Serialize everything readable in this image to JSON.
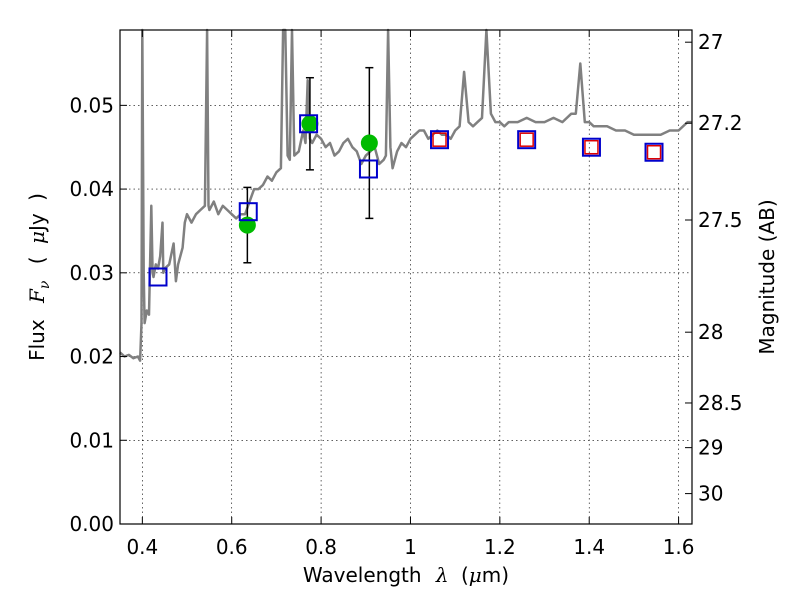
{
  "chart_data": {
    "type": "scatter",
    "xlabel": {
      "prefix": "Wavelength",
      "symbol": "λ",
      "unit_open": "(",
      "unit_mu": "μ",
      "unit_rest": "m)"
    },
    "ylabel": {
      "prefix": "Flux",
      "symbol": "F",
      "subscript": "ν",
      "unit_open": "(",
      "unit_mu": "μ",
      "unit_rest": "Jy",
      "unit_close": ")"
    },
    "ylabel_right": "Magnitude (AB)",
    "xlim": [
      0.35,
      1.63
    ],
    "ylim": [
      0.0,
      0.059
    ],
    "x_ticks": [
      0.4,
      0.6,
      0.8,
      1.0,
      1.2,
      1.4,
      1.6
    ],
    "x_tick_labels": [
      "0.4",
      "0.6",
      "0.8",
      "1",
      "1.2",
      "1.4",
      "1.6"
    ],
    "y_ticks": [
      0.0,
      0.01,
      0.02,
      0.03,
      0.04,
      0.05
    ],
    "y_tick_labels": [
      "0.00",
      "0.01",
      "0.02",
      "0.03",
      "0.04",
      "0.05"
    ],
    "right_ticks": [
      {
        "mag": 27,
        "label": "27"
      },
      {
        "mag": 27.2,
        "label": "27.2"
      },
      {
        "mag": 27.5,
        "label": "27.5"
      },
      {
        "mag": 28,
        "label": "28"
      },
      {
        "mag": 28.5,
        "label": "28.5"
      },
      {
        "mag": 29,
        "label": "29"
      },
      {
        "mag": 30,
        "label": "30"
      }
    ],
    "grid": true,
    "colors": {
      "model_sed": "#808080",
      "observed": "#00bb00",
      "model_phot": "#0000cc",
      "model_phot_inner": "#dd0000",
      "errorbar": "#000000"
    },
    "series": [
      {
        "kind": "model_spectrum",
        "points": [
          [
            0.35,
            0.0205
          ],
          [
            0.36,
            0.02
          ],
          [
            0.37,
            0.0202
          ],
          [
            0.38,
            0.0198
          ],
          [
            0.39,
            0.02
          ],
          [
            0.395,
            0.0195
          ],
          [
            0.398,
            0.024
          ],
          [
            0.4,
            0.06
          ],
          [
            0.403,
            0.03
          ],
          [
            0.405,
            0.024
          ],
          [
            0.41,
            0.0255
          ],
          [
            0.415,
            0.025
          ],
          [
            0.42,
            0.038
          ],
          [
            0.423,
            0.03
          ],
          [
            0.425,
            0.0295
          ],
          [
            0.43,
            0.031
          ],
          [
            0.435,
            0.0305
          ],
          [
            0.44,
            0.032
          ],
          [
            0.445,
            0.036
          ],
          [
            0.447,
            0.03
          ],
          [
            0.45,
            0.0305
          ],
          [
            0.46,
            0.031
          ],
          [
            0.47,
            0.0335
          ],
          [
            0.475,
            0.029
          ],
          [
            0.48,
            0.031
          ],
          [
            0.49,
            0.033
          ],
          [
            0.495,
            0.036
          ],
          [
            0.5,
            0.037
          ],
          [
            0.51,
            0.036
          ],
          [
            0.52,
            0.037
          ],
          [
            0.53,
            0.0375
          ],
          [
            0.54,
            0.038
          ],
          [
            0.545,
            0.06
          ],
          [
            0.548,
            0.038
          ],
          [
            0.55,
            0.0375
          ],
          [
            0.56,
            0.0385
          ],
          [
            0.57,
            0.037
          ],
          [
            0.58,
            0.038
          ],
          [
            0.59,
            0.0375
          ],
          [
            0.6,
            0.037
          ],
          [
            0.61,
            0.0365
          ],
          [
            0.62,
            0.037
          ],
          [
            0.63,
            0.037
          ],
          [
            0.64,
            0.0385
          ],
          [
            0.65,
            0.04
          ],
          [
            0.66,
            0.04
          ],
          [
            0.67,
            0.0405
          ],
          [
            0.68,
            0.0415
          ],
          [
            0.69,
            0.041
          ],
          [
            0.7,
            0.042
          ],
          [
            0.71,
            0.0425
          ],
          [
            0.715,
            0.06
          ],
          [
            0.72,
            0.06
          ],
          [
            0.725,
            0.044
          ],
          [
            0.73,
            0.0435
          ],
          [
            0.735,
            0.06
          ],
          [
            0.74,
            0.044
          ],
          [
            0.75,
            0.0445
          ],
          [
            0.76,
            0.047
          ],
          [
            0.765,
            0.0455
          ],
          [
            0.77,
            0.053
          ],
          [
            0.775,
            0.046
          ],
          [
            0.78,
            0.0455
          ],
          [
            0.79,
            0.0465
          ],
          [
            0.8,
            0.046
          ],
          [
            0.81,
            0.045
          ],
          [
            0.82,
            0.0455
          ],
          [
            0.83,
            0.044
          ],
          [
            0.84,
            0.0445
          ],
          [
            0.85,
            0.0455
          ],
          [
            0.86,
            0.046
          ],
          [
            0.87,
            0.045
          ],
          [
            0.88,
            0.0445
          ],
          [
            0.89,
            0.043
          ],
          [
            0.9,
            0.044
          ],
          [
            0.91,
            0.0445
          ],
          [
            0.92,
            0.045
          ],
          [
            0.93,
            0.043
          ],
          [
            0.94,
            0.0435
          ],
          [
            0.945,
            0.044
          ],
          [
            0.95,
            0.06
          ],
          [
            0.955,
            0.045
          ],
          [
            0.96,
            0.0425
          ],
          [
            0.97,
            0.0445
          ],
          [
            0.98,
            0.0455
          ],
          [
            0.99,
            0.045
          ],
          [
            1.0,
            0.046
          ],
          [
            1.01,
            0.0465
          ],
          [
            1.02,
            0.047
          ],
          [
            1.03,
            0.047
          ],
          [
            1.04,
            0.046
          ],
          [
            1.05,
            0.0465
          ],
          [
            1.06,
            0.047
          ],
          [
            1.07,
            0.0465
          ],
          [
            1.08,
            0.0465
          ],
          [
            1.09,
            0.046
          ],
          [
            1.1,
            0.047
          ],
          [
            1.11,
            0.0475
          ],
          [
            1.12,
            0.054
          ],
          [
            1.13,
            0.048
          ],
          [
            1.14,
            0.0475
          ],
          [
            1.15,
            0.048
          ],
          [
            1.16,
            0.0485
          ],
          [
            1.17,
            0.06
          ],
          [
            1.18,
            0.049
          ],
          [
            1.19,
            0.048
          ],
          [
            1.2,
            0.048
          ],
          [
            1.21,
            0.0475
          ],
          [
            1.22,
            0.048
          ],
          [
            1.24,
            0.048
          ],
          [
            1.26,
            0.0485
          ],
          [
            1.28,
            0.048
          ],
          [
            1.3,
            0.048
          ],
          [
            1.32,
            0.0485
          ],
          [
            1.34,
            0.048
          ],
          [
            1.36,
            0.049
          ],
          [
            1.37,
            0.049
          ],
          [
            1.38,
            0.055
          ],
          [
            1.39,
            0.048
          ],
          [
            1.4,
            0.048
          ],
          [
            1.41,
            0.0475
          ],
          [
            1.42,
            0.0475
          ],
          [
            1.44,
            0.0475
          ],
          [
            1.46,
            0.047
          ],
          [
            1.48,
            0.047
          ],
          [
            1.5,
            0.0465
          ],
          [
            1.52,
            0.0465
          ],
          [
            1.54,
            0.0465
          ],
          [
            1.56,
            0.0465
          ],
          [
            1.58,
            0.047
          ],
          [
            1.6,
            0.047
          ],
          [
            1.62,
            0.048
          ],
          [
            1.63,
            0.048
          ]
        ]
      },
      {
        "kind": "observed_photometry",
        "points": [
          {
            "x": 0.635,
            "y": 0.0357,
            "yerr": 0.0045
          },
          {
            "x": 0.775,
            "y": 0.0478,
            "yerr": 0.0055
          },
          {
            "x": 0.908,
            "y": 0.0455,
            "yerr": 0.009
          }
        ]
      },
      {
        "kind": "model_photometry_blue",
        "points": [
          {
            "x": 0.435,
            "y": 0.0295
          },
          {
            "x": 0.637,
            "y": 0.0373
          },
          {
            "x": 0.772,
            "y": 0.0478
          },
          {
            "x": 0.906,
            "y": 0.0424
          },
          {
            "x": 1.065,
            "y": 0.0459
          },
          {
            "x": 1.26,
            "y": 0.0459
          },
          {
            "x": 1.405,
            "y": 0.045
          },
          {
            "x": 1.545,
            "y": 0.0444
          }
        ]
      },
      {
        "kind": "model_photometry_red",
        "points": [
          {
            "x": 1.065,
            "y": 0.0459
          },
          {
            "x": 1.26,
            "y": 0.0459
          },
          {
            "x": 1.405,
            "y": 0.045
          },
          {
            "x": 1.545,
            "y": 0.0444
          }
        ]
      }
    ]
  }
}
